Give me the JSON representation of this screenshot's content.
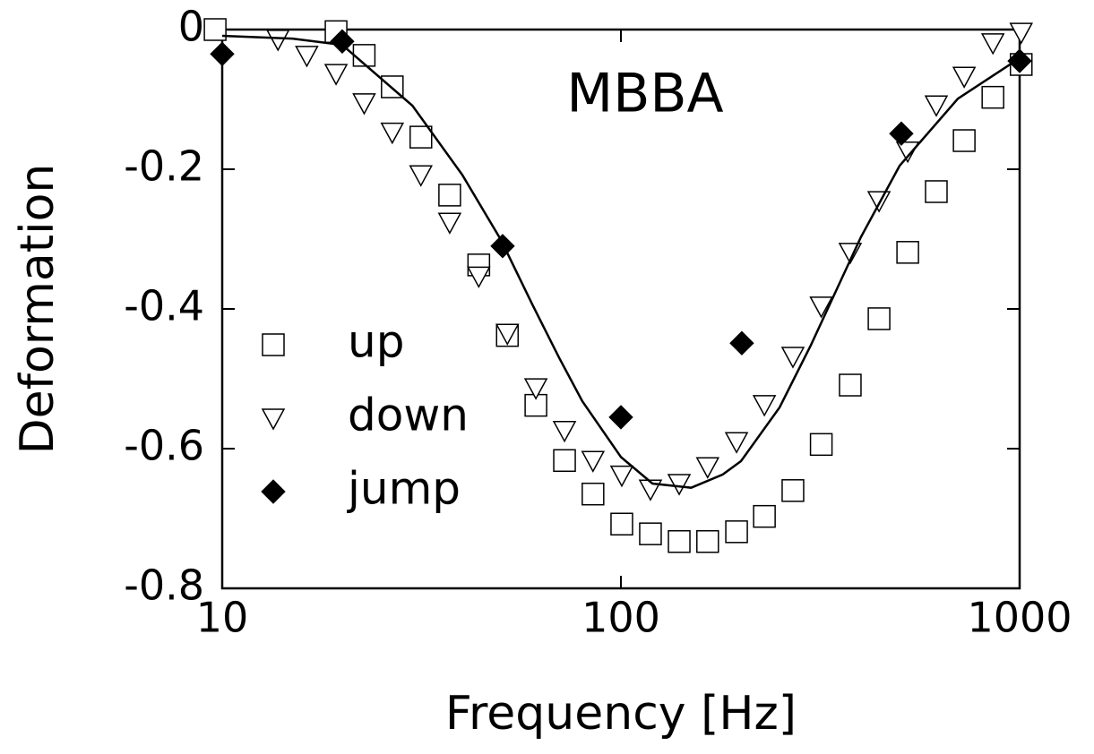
{
  "chart_data": {
    "type": "scatter",
    "annotation": "MBBA",
    "xlabel": "Frequency [Hz]",
    "ylabel": "Deformation",
    "xscale": "log",
    "xlim": [
      10,
      1000
    ],
    "xticks": [
      10,
      100,
      1000
    ],
    "ylim": [
      -0.8,
      0
    ],
    "yticks": [
      -0.8,
      -0.6,
      -0.4,
      -0.2,
      0
    ],
    "legend": "left",
    "series": [
      {
        "name": "up",
        "marker": "square",
        "color": "#000000",
        "x": [
          9.6,
          19.3,
          22.7,
          26.7,
          31.5,
          37.2,
          44.0,
          51.9,
          61.2,
          72.2,
          85.1,
          100.5,
          118.6,
          140,
          165,
          195,
          229,
          270,
          318,
          376,
          444,
          524,
          618,
          726,
          857,
          1009
        ],
        "values": [
          0,
          -0.003,
          -0.037,
          -0.082,
          -0.154,
          -0.237,
          -0.337,
          -0.438,
          -0.538,
          -0.617,
          -0.665,
          -0.708,
          -0.722,
          -0.733,
          -0.733,
          -0.719,
          -0.697,
          -0.66,
          -0.594,
          -0.509,
          -0.414,
          -0.319,
          -0.232,
          -0.159,
          -0.097,
          -0.05
        ]
      },
      {
        "name": "down",
        "marker": "triangle-down",
        "color": "#000000",
        "x": [
          13.8,
          16.3,
          19.3,
          22.7,
          26.7,
          31.5,
          37.2,
          44.0,
          51.9,
          61.2,
          72.2,
          85.1,
          100.5,
          118.6,
          140,
          165,
          195,
          229,
          270,
          318,
          376,
          444,
          524,
          618,
          726,
          857,
          1009
        ],
        "values": [
          -0.014,
          -0.037,
          -0.063,
          -0.105,
          -0.147,
          -0.208,
          -0.276,
          -0.353,
          -0.435,
          -0.513,
          -0.574,
          -0.617,
          -0.638,
          -0.658,
          -0.65,
          -0.626,
          -0.59,
          -0.537,
          -0.468,
          -0.396,
          -0.319,
          -0.245,
          -0.174,
          -0.108,
          -0.067,
          -0.019,
          -0.004
        ]
      },
      {
        "name": "jump",
        "marker": "diamond",
        "color": "#000000",
        "x": [
          10,
          20,
          50.5,
          100,
          201,
          505,
          1000
        ],
        "values": [
          -0.035,
          -0.017,
          -0.31,
          -0.555,
          -0.449,
          -0.149,
          -0.045
        ]
      },
      {
        "marker": "line",
        "color": "#000000",
        "x": [
          10,
          15,
          20,
          30,
          40,
          50,
          60,
          70,
          80,
          100,
          120,
          150,
          180,
          200,
          250,
          300,
          400,
          500,
          700,
          1000
        ],
        "values": [
          -0.009,
          -0.013,
          -0.022,
          -0.109,
          -0.208,
          -0.301,
          -0.394,
          -0.47,
          -0.532,
          -0.612,
          -0.65,
          -0.656,
          -0.637,
          -0.618,
          -0.541,
          -0.451,
          -0.297,
          -0.195,
          -0.099,
          -0.041
        ]
      }
    ]
  }
}
